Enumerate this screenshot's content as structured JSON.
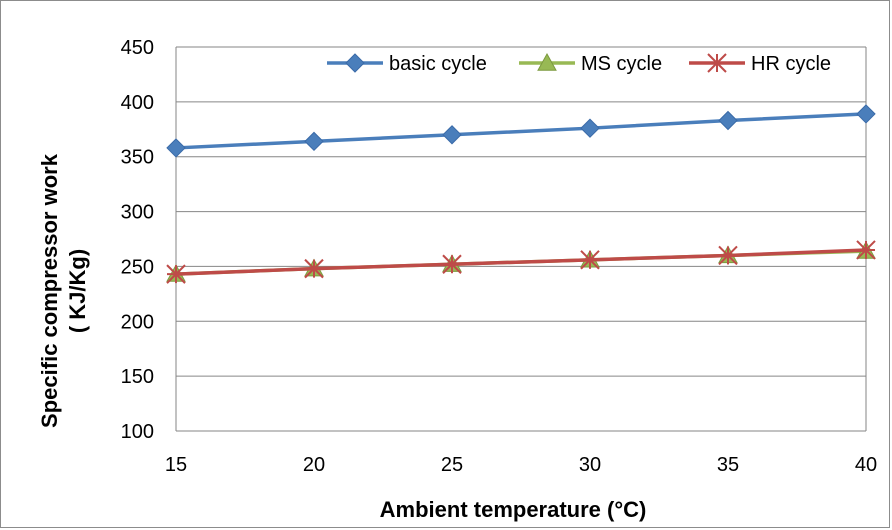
{
  "chart_data": {
    "type": "line",
    "x": [
      15,
      20,
      25,
      30,
      35,
      40
    ],
    "xlabel": "Ambient temperature (°C)",
    "ylabel_line1": "Specific  compressor  work",
    "ylabel_line2": "( KJ/Kg)",
    "ylim": [
      100,
      450
    ],
    "yticks": [
      100,
      150,
      200,
      250,
      300,
      350,
      400,
      450
    ],
    "xticks": [
      "15",
      "20",
      "25",
      "30",
      "35",
      "40"
    ],
    "grid": "horizontal",
    "legend_position": "top-right",
    "series": [
      {
        "name": "basic cycle",
        "values": [
          358,
          364,
          370,
          376,
          383,
          389
        ],
        "color": "#4a7ebb",
        "marker": "diamond"
      },
      {
        "name": "MS cycle",
        "values": [
          243,
          248,
          252,
          256,
          260,
          264
        ],
        "color": "#98b954",
        "marker": "triangle"
      },
      {
        "name": "HR cycle",
        "values": [
          243,
          248,
          252,
          256,
          260,
          265
        ],
        "color": "#be4b48",
        "marker": "star"
      }
    ]
  }
}
